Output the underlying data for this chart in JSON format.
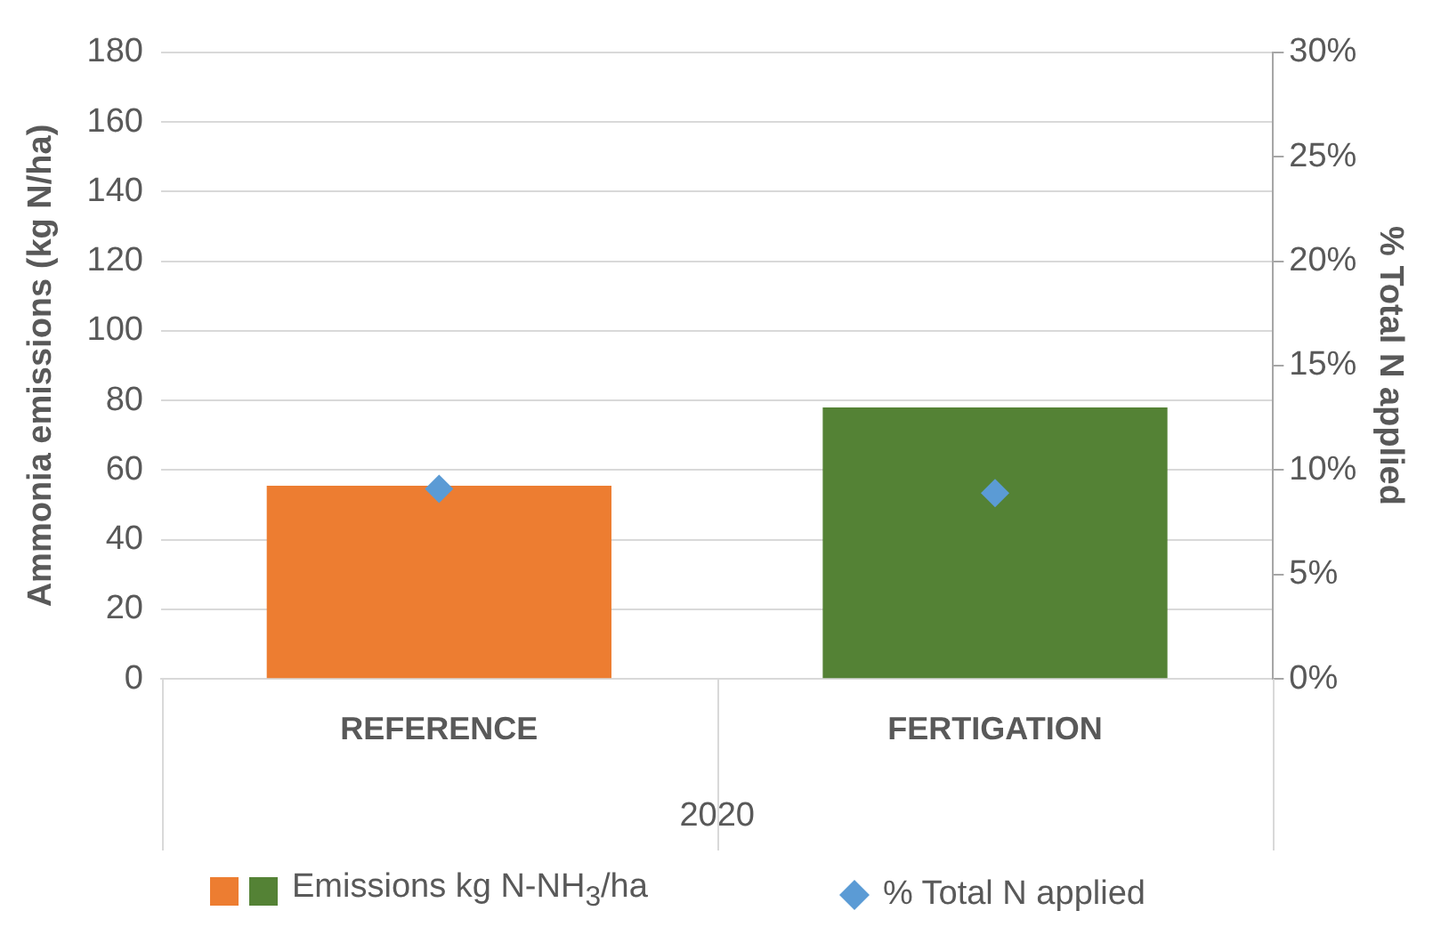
{
  "chart_data": {
    "type": "bar",
    "categories": [
      "REFERENCE",
      "FERTIGATION"
    ],
    "series": [
      {
        "name": "Emissions kg N-NH$_{3}$/ha",
        "colors": [
          "#ed7d31",
          "#548235"
        ],
        "values": [
          55.5,
          78
        ]
      },
      {
        "name": "% Total N applied",
        "type": "scatter",
        "axis": "y2",
        "color": "#5b9bd5",
        "values": [
          9.1,
          8.9
        ],
        "marker": "diamond"
      }
    ],
    "xlabel": "2020",
    "ylabel": "Ammonia emissions (kg N/ha)",
    "y2label": "% Total N applied",
    "ylim": [
      0,
      180
    ],
    "yticks": [
      0,
      20,
      40,
      60,
      80,
      100,
      120,
      140,
      160,
      180
    ],
    "y2lim": [
      0,
      30
    ],
    "y2ticks": [
      {
        "value": 0,
        "label": "0%"
      },
      {
        "value": 5,
        "label": "5%"
      },
      {
        "value": 10,
        "label": "10%"
      },
      {
        "value": 15,
        "label": "15%"
      },
      {
        "value": 20,
        "label": "20%"
      },
      {
        "value": 25,
        "label": "25%"
      },
      {
        "value": 30,
        "label": "30%"
      }
    ],
    "grid": "y",
    "legend": "bottom"
  }
}
